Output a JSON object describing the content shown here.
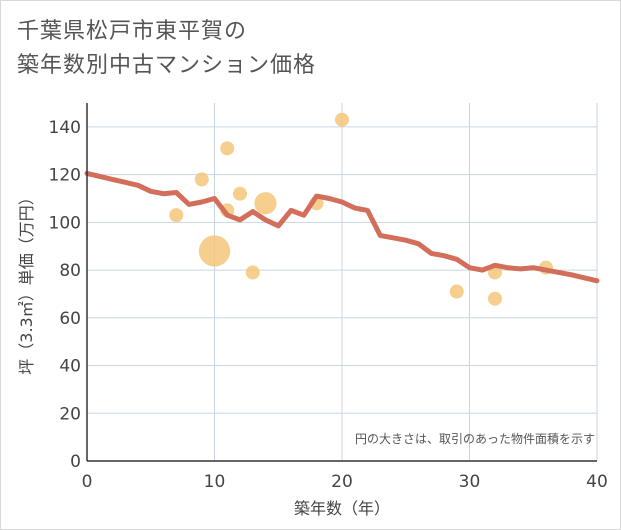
{
  "chart_data": {
    "type": "scatter",
    "title_line1": "千葉県松戸市東平賀の",
    "title_line2": "築年数別中古マンション価格",
    "xlabel": "築年数（年）",
    "ylabel": "坪（3.3㎡）単価（万円）",
    "xlim": [
      0,
      40
    ],
    "ylim": [
      0,
      150
    ],
    "xticks": [
      0,
      10,
      20,
      30,
      40
    ],
    "yticks": [
      0,
      20,
      40,
      60,
      80,
      100,
      120,
      140
    ],
    "grid": true,
    "note": "円の大きさは、取引のあった物件面積を示す",
    "points": [
      {
        "x": 7,
        "y": 103,
        "size": 1
      },
      {
        "x": 9,
        "y": 118,
        "size": 1
      },
      {
        "x": 10,
        "y": 88,
        "size": 5
      },
      {
        "x": 11,
        "y": 131,
        "size": 1
      },
      {
        "x": 11,
        "y": 105,
        "size": 1
      },
      {
        "x": 12,
        "y": 112,
        "size": 1
      },
      {
        "x": 13,
        "y": 79,
        "size": 1
      },
      {
        "x": 14,
        "y": 108,
        "size": 2.5
      },
      {
        "x": 18,
        "y": 108,
        "size": 1
      },
      {
        "x": 20,
        "y": 143,
        "size": 1
      },
      {
        "x": 29,
        "y": 71,
        "size": 1
      },
      {
        "x": 32,
        "y": 79,
        "size": 1
      },
      {
        "x": 32,
        "y": 68,
        "size": 1
      },
      {
        "x": 36,
        "y": 81,
        "size": 1
      }
    ],
    "trend": {
      "x": [
        0,
        2,
        4,
        5,
        6,
        7,
        8,
        9,
        10,
        11,
        12,
        13,
        14,
        15,
        16,
        17,
        18,
        19,
        20,
        21,
        22,
        23,
        24,
        25,
        26,
        27,
        28,
        29,
        30,
        31,
        32,
        33,
        34,
        35,
        36,
        38,
        40
      ],
      "y": [
        120.5,
        118,
        115.5,
        113,
        112,
        112.5,
        107.5,
        108.5,
        110,
        103,
        101,
        104.5,
        101,
        98.5,
        105,
        103,
        111,
        110,
        108.5,
        106,
        105,
        94.5,
        93.5,
        92.5,
        91,
        87,
        86,
        84.5,
        81,
        80,
        82,
        81,
        80.5,
        81,
        80,
        78,
        75.5
      ]
    },
    "colors": {
      "trend": "#d36e5a",
      "bubble": "#f5c57a",
      "grid": "#c8d6e4",
      "axis": "#333333"
    }
  }
}
